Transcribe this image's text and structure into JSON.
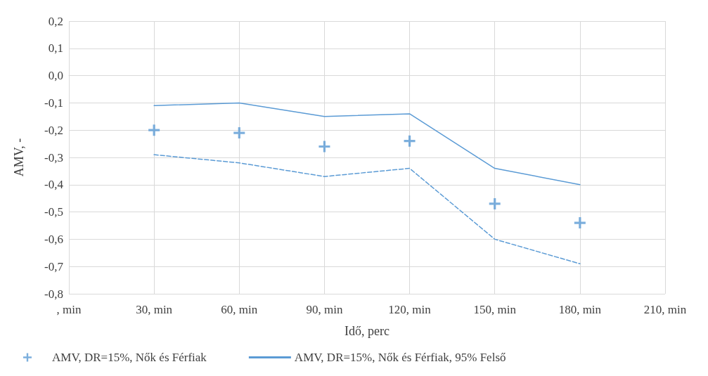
{
  "chart_data": {
    "type": "scatter",
    "xlabel": "Idő, perc",
    "ylabel": "AMV, -",
    "categories": [
      ", min",
      "30, min",
      "60, min",
      "90, min",
      "120, min",
      "150, min",
      "180, min",
      "210, min"
    ],
    "series": [
      {
        "name": "AMV, DR=15%, Nők és Férfiak",
        "marker": "cross",
        "color": "#5b9bd5",
        "values": [
          null,
          -0.2,
          -0.21,
          -0.26,
          -0.24,
          -0.47,
          -0.54,
          null
        ]
      },
      {
        "name": "AMV, DR=15%, Nők és Férfiak, 95% Felső",
        "type": "line",
        "marker": "none",
        "line_style": "solid",
        "color": "#5b9bd5",
        "values": [
          null,
          -0.11,
          -0.1,
          -0.15,
          -0.14,
          -0.34,
          -0.4,
          null
        ]
      },
      {
        "type": "line",
        "marker": "none",
        "line_style": "dashed",
        "color": "#5b9bd5",
        "values": [
          null,
          -0.29,
          -0.32,
          -0.37,
          -0.34,
          -0.6,
          -0.69,
          null
        ]
      }
    ],
    "ylim": [
      -0.8,
      0.2
    ],
    "yticks": [
      {
        "value": -0.8,
        "label": "-0,8"
      },
      {
        "value": -0.7,
        "label": "-0,7"
      },
      {
        "value": -0.6,
        "label": "-0,6"
      },
      {
        "value": -0.5,
        "label": "-0,5"
      },
      {
        "value": -0.4,
        "label": "-0,4"
      },
      {
        "value": -0.3,
        "label": "-0,3"
      },
      {
        "value": -0.2,
        "label": "-0,2"
      },
      {
        "value": -0.1,
        "label": "-0,1"
      },
      {
        "value": 0,
        "label": "0,0"
      },
      {
        "value": 0.1,
        "label": "0,1"
      },
      {
        "value": 0.2,
        "label": "0,2"
      }
    ],
    "grid": true,
    "legend": "bottom"
  }
}
